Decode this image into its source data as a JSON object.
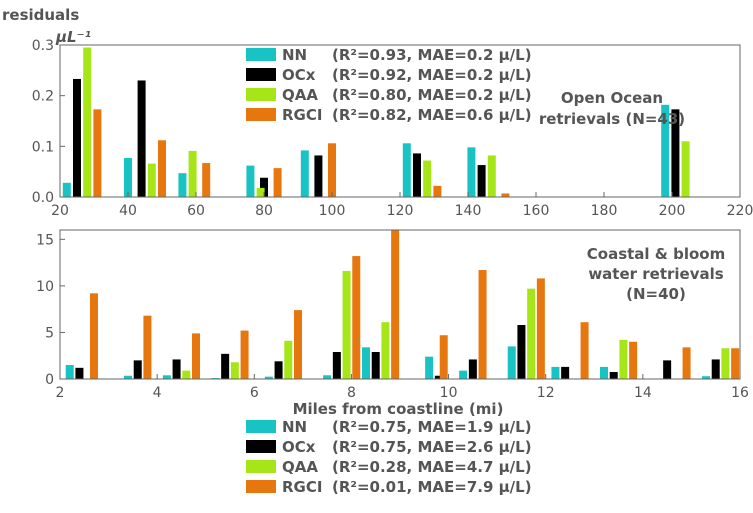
{
  "y_label": "residuals",
  "y_unit": "μL⁻¹",
  "x_label": "Miles from coastline (mi)",
  "colors": {
    "NN": "#19c3c3",
    "OCx": "#000000",
    "QAA": "#a6e619",
    "RGCI": "#e6770f"
  },
  "chart_data": [
    {
      "type": "bar",
      "xlim": [
        20,
        220
      ],
      "ylim": [
        0,
        0.3
      ],
      "xticks": [
        20,
        40,
        60,
        80,
        100,
        120,
        140,
        160,
        180,
        200,
        220
      ],
      "yticks": [
        0,
        0.1,
        0.2,
        0.3
      ],
      "annotation": [
        "Open Ocean",
        "retrievals (N=43)"
      ],
      "series": [
        {
          "name": "NN",
          "stat": "(R²=0.93, MAE=0.2 μ/L)",
          "x": [
            22,
            40,
            56,
            76,
            92,
            122,
            141,
            198
          ],
          "values": [
            0.028,
            0.077,
            0.047,
            0.062,
            0.092,
            0.106,
            0.098,
            0.182
          ]
        },
        {
          "name": "OCx",
          "stat": "(R²=0.92, MAE=0.2 μ/L)",
          "x": [
            25,
            44,
            80,
            96,
            125,
            144,
            201
          ],
          "values": [
            0.233,
            0.23,
            0.038,
            0.082,
            0.086,
            0.063,
            0.173
          ]
        },
        {
          "name": "QAA",
          "stat": "(R²=0.80, MAE=0.2 μ/L)",
          "x": [
            28,
            47,
            59,
            79,
            128,
            147,
            204
          ],
          "values": [
            0.295,
            0.066,
            0.091,
            0.018,
            0.072,
            0.082,
            0.11
          ]
        },
        {
          "name": "RGCI",
          "stat": "(R²=0.82, MAE=0.6 μ/L)",
          "x": [
            31,
            50,
            63,
            84,
            100,
            131,
            151
          ],
          "values": [
            0.173,
            0.112,
            0.067,
            0.057,
            0.106,
            0.022,
            0.007
          ]
        }
      ]
    },
    {
      "type": "bar",
      "xlim": [
        2,
        16
      ],
      "ylim": [
        0,
        16
      ],
      "xticks": [
        2,
        4,
        6,
        8,
        10,
        12,
        14,
        16
      ],
      "yticks": [
        0,
        5,
        10,
        15
      ],
      "annotation": [
        "Coastal & bloom",
        "water retrievals",
        "(N=40)"
      ],
      "series": [
        {
          "name": "NN",
          "stat": "(R²=0.75, MAE=1.9 μ/L)",
          "x": [
            2.2,
            3.4,
            4.2,
            5.2,
            6.3,
            7.5,
            8.3,
            9.6,
            10.3,
            11.3,
            12.2,
            13.2,
            14.3,
            15.3
          ],
          "values": [
            1.5,
            0.35,
            0.4,
            0.1,
            0.25,
            0.4,
            3.4,
            2.4,
            0.9,
            3.5,
            1.3,
            1.3,
            0.05,
            0.3
          ]
        },
        {
          "name": "OCx",
          "stat": "(R²=0.75, MAE=2.6 μ/L)",
          "x": [
            2.4,
            3.6,
            4.4,
            5.4,
            6.5,
            7.7,
            8.5,
            9.8,
            10.5,
            11.5,
            12.4,
            13.4,
            14.5,
            15.5
          ],
          "values": [
            1.2,
            2.0,
            2.1,
            2.7,
            1.9,
            2.9,
            2.9,
            0.35,
            2.1,
            5.8,
            1.3,
            0.75,
            2.0,
            2.1
          ]
        },
        {
          "name": "QAA",
          "stat": "(R²=0.28, MAE=4.7 μ/L)",
          "x": [
            4.6,
            5.6,
            6.7,
            7.9,
            8.7,
            11.7,
            13.6,
            15.7
          ],
          "values": [
            0.9,
            1.8,
            4.1,
            11.6,
            6.1,
            9.7,
            4.2,
            3.3
          ]
        },
        {
          "name": "RGCI",
          "stat": "(R²=0.01, MAE=7.9 μ/L)",
          "x": [
            2.7,
            3.8,
            4.8,
            5.8,
            6.9,
            8.1,
            8.9,
            9.9,
            10.7,
            11.9,
            12.8,
            13.8,
            14.9,
            15.9
          ],
          "values": [
            9.2,
            6.8,
            4.9,
            5.2,
            7.4,
            13.2,
            16.0,
            4.7,
            11.7,
            10.8,
            6.1,
            4.0,
            3.4,
            3.3
          ]
        }
      ]
    }
  ]
}
